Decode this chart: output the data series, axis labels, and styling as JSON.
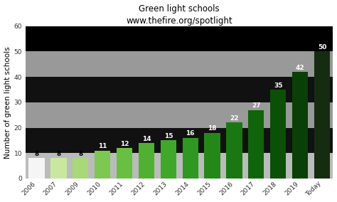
{
  "categories": [
    "2006",
    "2007",
    "2009",
    "2010",
    "2011",
    "2012",
    "2013",
    "2014",
    "2015",
    "2016",
    "2017",
    "2018",
    "2019",
    "Today"
  ],
  "values": [
    8,
    8,
    8,
    11,
    12,
    14,
    15,
    16,
    18,
    22,
    27,
    35,
    42,
    50
  ],
  "bar_colors": [
    "#f5f5f5",
    "#c8e8a0",
    "#a8d878",
    "#7dc850",
    "#68c040",
    "#50b030",
    "#3ea828",
    "#2e9820",
    "#248818",
    "#1a7812",
    "#10640a",
    "#0a5006",
    "#084006",
    "#162c10"
  ],
  "title_line1": "Green light schools",
  "title_line2": "www.thefire.org/spotlight",
  "ylabel": "Number of green light schools",
  "ylim": [
    0,
    60
  ],
  "yticks": [
    0,
    10,
    20,
    30,
    40,
    50,
    60
  ],
  "bg_bands": [
    {
      "ymin": 50,
      "ymax": 60,
      "color": "#000000"
    },
    {
      "ymin": 40,
      "ymax": 50,
      "color": "#999999"
    },
    {
      "ymin": 30,
      "ymax": 40,
      "color": "#111111"
    },
    {
      "ymin": 20,
      "ymax": 30,
      "color": "#999999"
    },
    {
      "ymin": 10,
      "ymax": 20,
      "color": "#111111"
    },
    {
      "ymin": 0,
      "ymax": 10,
      "color": "#bbbbbb"
    }
  ],
  "label_colors": [
    "#000000",
    "#000000",
    "#000000",
    "#ffffff",
    "#ffffff",
    "#ffffff",
    "#ffffff",
    "#ffffff",
    "#ffffff",
    "#ffffff",
    "#ffffff",
    "#ffffff",
    "#ffffff",
    "#ffffff"
  ],
  "title_fontsize": 8.5,
  "ylabel_fontsize": 7.5,
  "tick_fontsize": 6.5,
  "value_fontsize": 6.5,
  "fig_bg": "#ffffff",
  "bar_width": 0.72
}
